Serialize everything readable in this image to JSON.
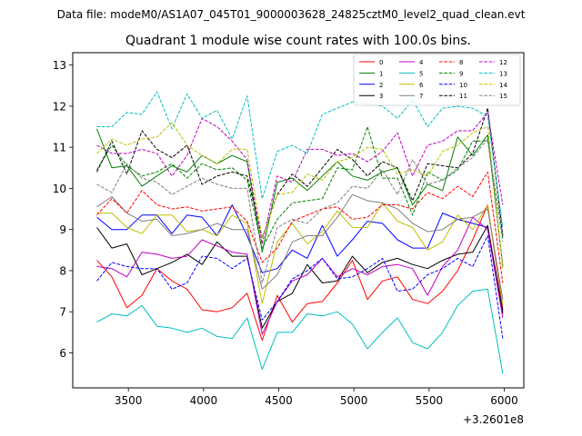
{
  "chart_data": {
    "type": "line",
    "suptitle": "Data file: modeM0/AS1A07_045T01_9000003628_24825cztM0_level2_quad_clean.evt",
    "title": "Quadrant 1 module wise count rates with 100.0s bins.",
    "xlabel": "",
    "ylabel": "",
    "x_offset_label": "+3.2601e8",
    "xlim": [
      3130,
      6130
    ],
    "ylim": [
      5.15,
      13.3
    ],
    "xticks": [
      3500,
      4000,
      4500,
      5000,
      5500,
      6000
    ],
    "yticks": [
      6,
      7,
      8,
      9,
      10,
      11,
      12,
      13
    ],
    "x": [
      3290,
      3390,
      3490,
      3590,
      3690,
      3790,
      3890,
      3990,
      4090,
      4190,
      4290,
      4390,
      4490,
      4590,
      4690,
      4790,
      4890,
      4990,
      5090,
      5190,
      5290,
      5390,
      5490,
      5590,
      5690,
      5790,
      5890,
      5990
    ],
    "legend": {
      "location": "top-right",
      "columns": 4
    },
    "series": [
      {
        "name": "0",
        "color": "#ff0000",
        "dash": "solid",
        "values": [
          8.25,
          7.85,
          7.1,
          7.4,
          8.05,
          7.75,
          7.55,
          7.05,
          7.0,
          7.1,
          7.45,
          6.3,
          7.4,
          6.75,
          7.2,
          7.25,
          7.7,
          8.25,
          7.3,
          7.75,
          7.85,
          7.3,
          7.2,
          7.5,
          8.0,
          8.75,
          9.6,
          7.05
        ]
      },
      {
        "name": "1",
        "color": "#008000",
        "dash": "solid",
        "values": [
          11.45,
          10.5,
          10.55,
          10.05,
          10.3,
          10.55,
          10.4,
          10.8,
          10.6,
          10.8,
          10.65,
          8.45,
          10.15,
          10.25,
          9.95,
          10.3,
          10.65,
          10.3,
          10.2,
          10.4,
          10.5,
          9.6,
          10.1,
          9.95,
          11.25,
          10.8,
          11.3,
          8.1
        ]
      },
      {
        "name": "2",
        "color": "#0000ff",
        "dash": "solid",
        "values": [
          9.3,
          9.0,
          9.0,
          9.35,
          9.35,
          8.9,
          9.35,
          9.3,
          8.85,
          9.6,
          8.85,
          7.95,
          8.05,
          8.5,
          8.3,
          9.1,
          8.35,
          8.75,
          9.2,
          9.15,
          8.75,
          8.55,
          8.55,
          9.4,
          9.25,
          9.15,
          9.05,
          7.0
        ]
      },
      {
        "name": "3",
        "color": "#000000",
        "dash": "solid",
        "values": [
          9.05,
          8.55,
          8.65,
          7.9,
          8.05,
          8.2,
          8.4,
          8.15,
          8.7,
          8.35,
          8.35,
          6.6,
          7.25,
          7.45,
          8.15,
          7.7,
          7.75,
          8.35,
          7.95,
          8.2,
          8.3,
          8.15,
          8.05,
          8.25,
          8.4,
          8.45,
          9.1,
          6.95
        ]
      },
      {
        "name": "4",
        "color": "#bf00bf",
        "dash": "solid",
        "values": [
          8.1,
          8.05,
          7.85,
          8.45,
          8.4,
          8.3,
          8.35,
          8.75,
          8.6,
          8.45,
          8.4,
          6.45,
          7.25,
          7.75,
          7.9,
          8.3,
          7.85,
          8.05,
          7.9,
          8.1,
          8.15,
          8.05,
          7.4,
          8.1,
          8.5,
          9.3,
          9.0,
          6.85
        ]
      },
      {
        "name": "5",
        "color": "#00bfbf",
        "dash": "solid",
        "values": [
          6.75,
          6.95,
          6.9,
          7.15,
          6.65,
          6.6,
          6.5,
          6.6,
          6.4,
          6.35,
          6.85,
          5.6,
          6.5,
          6.5,
          6.95,
          6.9,
          7.0,
          6.7,
          6.1,
          6.5,
          6.85,
          6.25,
          6.1,
          6.5,
          7.15,
          7.5,
          7.55,
          5.5
        ]
      },
      {
        "name": "6",
        "color": "#bfbf00",
        "dash": "solid",
        "values": [
          9.4,
          9.4,
          9.05,
          8.9,
          9.35,
          9.35,
          8.95,
          9.0,
          8.85,
          9.35,
          9.15,
          7.2,
          8.7,
          9.15,
          8.65,
          8.95,
          9.45,
          9.05,
          9.05,
          9.65,
          9.2,
          9.05,
          8.5,
          8.7,
          9.35,
          9.0,
          9.6,
          7.15
        ]
      },
      {
        "name": "7",
        "color": "#808080",
        "dash": "solid",
        "values": [
          9.55,
          9.8,
          9.4,
          9.2,
          9.25,
          8.85,
          8.9,
          9.0,
          9.15,
          9.0,
          9.0,
          7.55,
          7.9,
          8.7,
          8.85,
          8.85,
          9.3,
          9.85,
          9.7,
          9.65,
          9.5,
          9.15,
          8.95,
          9.0,
          9.25,
          9.3,
          9.5,
          7.3
        ]
      },
      {
        "name": "8",
        "color": "#ff0000",
        "dash": "dashed",
        "values": [
          9.35,
          9.75,
          9.4,
          9.95,
          9.6,
          9.5,
          9.55,
          9.45,
          9.5,
          9.55,
          9.2,
          8.2,
          8.55,
          9.2,
          9.35,
          9.5,
          9.55,
          9.25,
          9.3,
          9.6,
          9.6,
          9.5,
          9.9,
          9.75,
          10.05,
          9.8,
          10.4,
          7.7
        ]
      },
      {
        "name": "9",
        "color": "#008000",
        "dash": "dashed",
        "values": [
          10.45,
          11.05,
          10.55,
          10.3,
          10.4,
          10.6,
          10.25,
          10.6,
          10.45,
          10.5,
          10.2,
          8.55,
          9.25,
          9.65,
          9.7,
          9.75,
          10.5,
          10.45,
          11.5,
          10.25,
          10.25,
          9.35,
          10.4,
          10.2,
          10.45,
          11.15,
          11.15,
          8.8
        ]
      },
      {
        "name": "10",
        "color": "#0000ff",
        "dash": "dashed",
        "values": [
          7.75,
          8.2,
          8.1,
          8.05,
          8.05,
          7.55,
          7.7,
          8.35,
          8.3,
          8.05,
          8.3,
          6.8,
          7.25,
          7.8,
          8.0,
          8.3,
          7.8,
          7.85,
          8.05,
          8.3,
          7.5,
          7.55,
          7.9,
          8.05,
          8.3,
          8.1,
          8.85,
          6.35
        ]
      },
      {
        "name": "11",
        "color": "#000000",
        "dash": "dashed",
        "values": [
          10.4,
          11.15,
          10.35,
          11.4,
          10.95,
          10.75,
          11.05,
          10.1,
          10.3,
          10.4,
          10.3,
          8.8,
          9.85,
          10.35,
          10.05,
          10.5,
          10.95,
          10.7,
          10.3,
          10.65,
          10.5,
          9.7,
          10.6,
          10.55,
          10.5,
          10.85,
          11.95,
          8.85
        ]
      },
      {
        "name": "12",
        "color": "#bf00bf",
        "dash": "dashed",
        "values": [
          11.05,
          10.85,
          10.85,
          10.95,
          10.85,
          10.3,
          10.8,
          11.7,
          11.5,
          11.15,
          10.7,
          8.65,
          10.3,
          10.15,
          10.95,
          10.95,
          10.8,
          10.85,
          10.65,
          10.9,
          11.35,
          10.3,
          11.05,
          11.15,
          11.4,
          11.4,
          11.85,
          9.6
        ]
      },
      {
        "name": "13",
        "color": "#00bfbf",
        "dash": "dashed",
        "values": [
          11.5,
          11.5,
          11.85,
          11.8,
          12.35,
          11.45,
          12.3,
          11.7,
          11.9,
          11.2,
          12.25,
          9.75,
          10.9,
          11.05,
          10.85,
          11.8,
          11.95,
          12.1,
          12.05,
          12.0,
          11.7,
          12.15,
          11.5,
          11.95,
          12.0,
          11.95,
          11.75,
          9.05
        ]
      },
      {
        "name": "14",
        "color": "#bfbf00",
        "dash": "dashed",
        "values": [
          10.85,
          11.2,
          11.05,
          11.2,
          11.25,
          11.6,
          11.05,
          10.8,
          10.6,
          10.95,
          10.95,
          8.8,
          9.85,
          9.9,
          10.35,
          10.2,
          10.65,
          10.75,
          11.0,
          10.95,
          10.35,
          10.45,
          10.3,
          10.9,
          11.05,
          11.35,
          11.5,
          8.05
        ]
      },
      {
        "name": "15",
        "color": "#808080",
        "dash": "dashed",
        "values": [
          10.1,
          9.9,
          10.6,
          10.25,
          10.15,
          9.85,
          10.05,
          10.25,
          10.1,
          10.0,
          10.0,
          7.7,
          9.05,
          9.25,
          9.15,
          9.5,
          9.65,
          10.05,
          10.0,
          10.45,
          9.85,
          10.7,
          10.1,
          10.2,
          10.5,
          10.75,
          11.2,
          8.7
        ]
      }
    ]
  }
}
